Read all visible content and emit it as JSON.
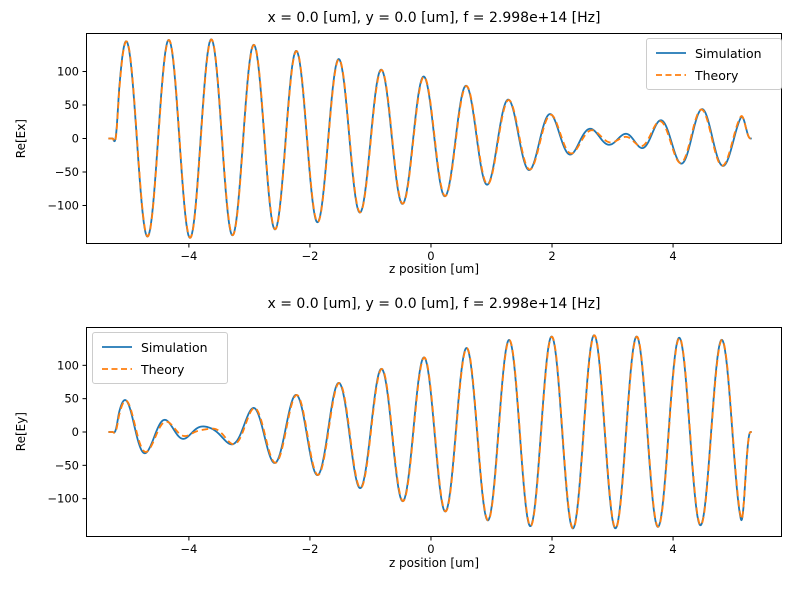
{
  "figure": {
    "background": "#ffffff",
    "axis_color": "#000000",
    "legend_border_color": "#cccccc"
  },
  "chart_data": [
    {
      "type": "line",
      "title": "x = 0.0 [um], y = 0.0 [um], f = 2.998e+14 [Hz]",
      "xlabel": "z position [um]",
      "ylabel": "Re[Ex]",
      "xlim": [
        -5.7,
        5.8
      ],
      "ylim": [
        -157.5,
        157.5
      ],
      "x_tick_values": [
        -4,
        -2,
        0,
        2,
        4
      ],
      "x_tick_labels": [
        "−4",
        "−2",
        "0",
        "2",
        "4"
      ],
      "y_tick_values": [
        100,
        50,
        0,
        -50,
        -100
      ],
      "y_tick_labels": [
        "100",
        "50",
        "0",
        "−50",
        "−100"
      ],
      "grid": false,
      "legend_position": "top-right",
      "series": [
        {
          "name": "Simulation",
          "color": "#1f77b4",
          "style": "solid"
        },
        {
          "name": "Theory",
          "color": "#ff7f0e",
          "style": "dashed"
        }
      ],
      "series_model": {
        "z_range": [
          -5.33,
          5.3
        ],
        "carrier_wavelength_um": 0.703,
        "carrier_peak_z": -0.11,
        "quadrature_amplitude": -7,
        "theory_quadrature_scale": 0.35,
        "edge_ramp_left": [
          -5.26,
          -5.15
        ],
        "edge_ramp_right": [
          5.12,
          5.28
        ],
        "envelope_points": [
          [
            -5.4,
            141
          ],
          [
            -5.05,
            145
          ],
          [
            -4.35,
            147
          ],
          [
            -3.65,
            148
          ],
          [
            -2.95,
            140
          ],
          [
            -2.25,
            131
          ],
          [
            -1.5,
            118
          ],
          [
            -0.85,
            103
          ],
          [
            -0.1,
            92
          ],
          [
            0.6,
            78
          ],
          [
            1.3,
            57
          ],
          [
            2.0,
            35
          ],
          [
            2.5,
            16
          ],
          [
            3.2,
            0
          ],
          [
            3.75,
            -25
          ],
          [
            4.45,
            -43
          ],
          [
            5.0,
            -38
          ],
          [
            5.4,
            -33
          ]
        ]
      }
    },
    {
      "type": "line",
      "title": "x = 0.0 [um], y = 0.0 [um], f = 2.998e+14 [Hz]",
      "xlabel": "z position [um]",
      "ylabel": "Re[Ey]",
      "xlim": [
        -5.7,
        5.8
      ],
      "ylim": [
        -157.5,
        157.5
      ],
      "x_tick_values": [
        -4,
        -2,
        0,
        2,
        4
      ],
      "x_tick_labels": [
        "−4",
        "−2",
        "0",
        "2",
        "4"
      ],
      "y_tick_values": [
        100,
        50,
        0,
        -50,
        -100
      ],
      "y_tick_labels": [
        "100",
        "50",
        "0",
        "−50",
        "−100"
      ],
      "grid": false,
      "legend_position": "top-left",
      "series": [
        {
          "name": "Simulation",
          "color": "#1f77b4",
          "style": "solid"
        },
        {
          "name": "Theory",
          "color": "#ff7f0e",
          "style": "dashed"
        }
      ],
      "series_model": {
        "z_range": [
          -5.33,
          5.3
        ],
        "carrier_wavelength_um": 0.703,
        "carrier_peak_z": -0.11,
        "quadrature_amplitude": -8,
        "theory_quadrature_scale": 0.35,
        "edge_ramp_left": [
          -5.26,
          -5.15
        ],
        "edge_ramp_right": [
          5.12,
          5.28
        ],
        "envelope_points": [
          [
            -5.4,
            50
          ],
          [
            -5.0,
            46
          ],
          [
            -4.65,
            27
          ],
          [
            -4.2,
            10
          ],
          [
            -3.8,
            2
          ],
          [
            -3.35,
            15
          ],
          [
            -2.9,
            37
          ],
          [
            -2.2,
            56
          ],
          [
            -1.5,
            74
          ],
          [
            -0.8,
            95
          ],
          [
            -0.1,
            112
          ],
          [
            0.6,
            126
          ],
          [
            1.3,
            138
          ],
          [
            2.0,
            143
          ],
          [
            2.7,
            145
          ],
          [
            3.4,
            143
          ],
          [
            4.15,
            141
          ],
          [
            4.85,
            138
          ],
          [
            5.4,
            137
          ]
        ]
      }
    }
  ]
}
